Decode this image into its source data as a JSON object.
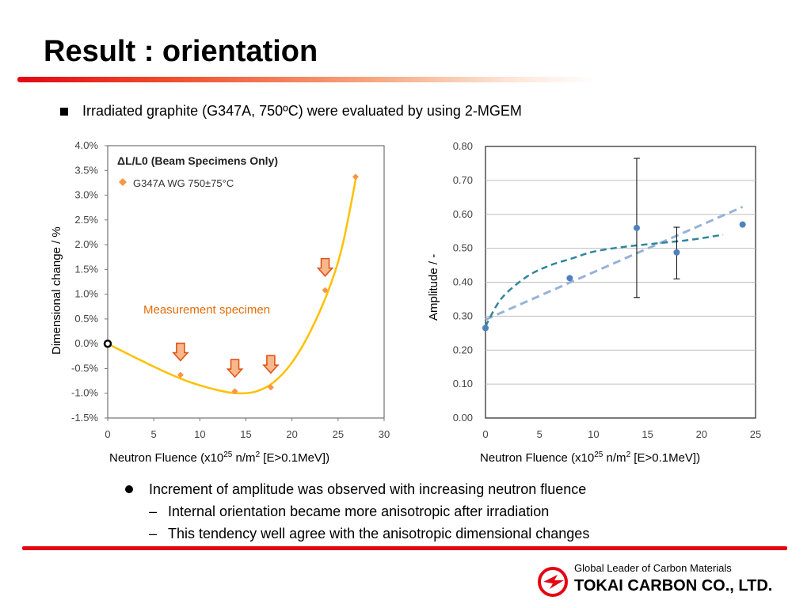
{
  "slide": {
    "title": "Result : orientation",
    "bullet": "Irradiated graphite (G347A, 750ºC) were evaluated by using 2-MGEM",
    "points": [
      {
        "text": "Increment of amplitude was observed with increasing neutron fluence"
      },
      {
        "text": "Internal  orientation became more anisotropic after irradiation"
      },
      {
        "text": "This tendency well agree with the anisotropic dimensional changes"
      }
    ],
    "footer_tagline": "Global Leader of Carbon Materials",
    "footer_company": "TOKAI CARBON CO., LTD.",
    "accent_color": "#e30613"
  },
  "chart_data": [
    {
      "type": "scatter",
      "title": "ΔL/L0 (Beam Specimens Only)",
      "xlabel": "Neutron Fluence (x10^25 n/m^2 [E>0.1MeV])",
      "ylabel": "Dimensional change / %",
      "xlim": [
        0,
        30
      ],
      "ylim": [
        -1.5,
        4.0
      ],
      "xticks": [
        "0",
        "5",
        "10",
        "15",
        "20",
        "25",
        "30"
      ],
      "yticks": [
        "-1.5%",
        "-1.0%",
        "-0.5%",
        "0.0%",
        "0.5%",
        "1.0%",
        "1.5%",
        "2.0%",
        "2.5%",
        "3.0%",
        "3.5%",
        "4.0%"
      ],
      "series": [
        {
          "name": "G347A WG 750±75°C",
          "x": [
            0,
            7.9,
            13.8,
            17.7,
            23.6,
            26.9
          ],
          "y": [
            0.0,
            -0.63,
            -0.96,
            -0.88,
            1.08,
            3.37
          ],
          "color": "#f79646"
        }
      ],
      "trend_curve": {
        "x": [
          0,
          3,
          6,
          9,
          12,
          14,
          16,
          18,
          20,
          22,
          24,
          25.5,
          27
        ],
        "y": [
          0.0,
          -0.28,
          -0.55,
          -0.78,
          -0.94,
          -1.0,
          -0.97,
          -0.78,
          -0.38,
          0.25,
          1.1,
          2.0,
          3.4
        ],
        "color": "#ffc000"
      },
      "annotation": "Measurement specimen",
      "annotation_color": "#e46c0a",
      "arrows_at_x": [
        7.9,
        13.8,
        17.7,
        23.6
      ],
      "legend_position": "top-left"
    },
    {
      "type": "scatter",
      "title": "",
      "xlabel": "Neutron Fluence (x10^25 n/m^2 [E>0.1MeV])",
      "ylabel": "Amplitude / -",
      "xlim": [
        0,
        25
      ],
      "ylim": [
        0.0,
        0.8
      ],
      "xticks": [
        "0",
        "5",
        "10",
        "15",
        "20",
        "25"
      ],
      "yticks": [
        "0.00",
        "0.10",
        "0.20",
        "0.30",
        "0.40",
        "0.50",
        "0.60",
        "0.70",
        "0.80"
      ],
      "grid": true,
      "series": [
        {
          "name": "",
          "x": [
            0,
            7.8,
            14,
            17.7,
            23.8
          ],
          "y": [
            0.265,
            0.412,
            0.56,
            0.488,
            0.57
          ],
          "color": "#4f81bd"
        }
      ],
      "error_bars": [
        {
          "x": 14,
          "low": 0.355,
          "high": 0.765
        },
        {
          "x": 17.7,
          "low": 0.41,
          "high": 0.562
        }
      ],
      "trend_log": {
        "x": [
          0,
          1,
          2,
          4,
          6,
          8,
          10,
          13,
          16,
          19,
          22
        ],
        "y": [
          0.27,
          0.33,
          0.37,
          0.42,
          0.45,
          0.47,
          0.49,
          0.505,
          0.515,
          0.525,
          0.54
        ],
        "color": "#31859c"
      },
      "trend_linear": {
        "x": [
          0,
          23.8
        ],
        "y": [
          0.29,
          0.622
        ],
        "color": "#95b3d7"
      }
    }
  ]
}
